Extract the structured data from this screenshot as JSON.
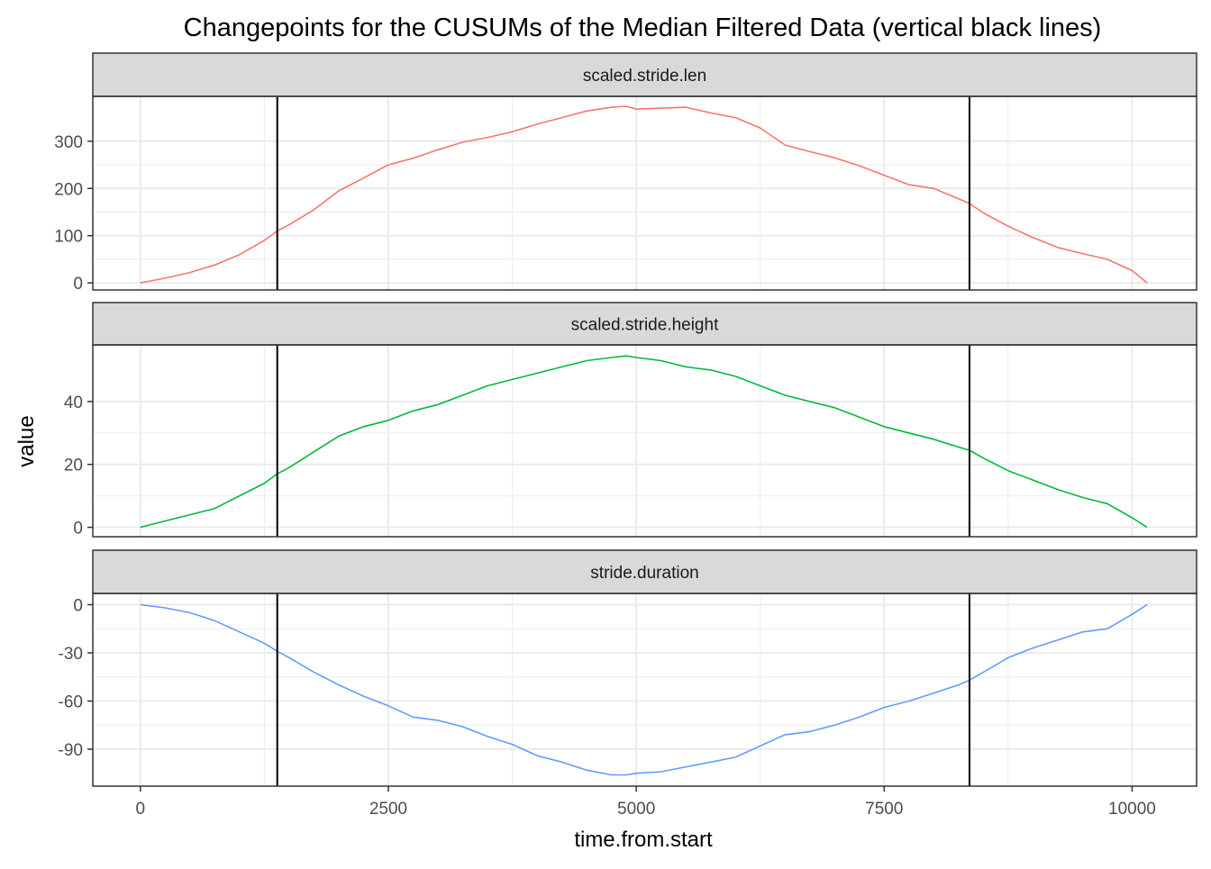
{
  "chart_data": {
    "type": "line",
    "title": "Changepoints for the CUSUMs of the Median Filtered Data (vertical black lines)",
    "xlabel": "time.from.start",
    "ylabel": "value",
    "xlim": [
      -480,
      10650
    ],
    "x_ticks": [
      0,
      2500,
      5000,
      7500,
      10000
    ],
    "x_tick_labels": [
      "0",
      "2500",
      "5000",
      "7500",
      "10000"
    ],
    "changepoints": [
      1380,
      8360
    ],
    "grid": true,
    "legend": "none",
    "colors": {
      "scaled.stride.len": "#F8766D",
      "scaled.stride.height": "#00BA38",
      "stride.duration": "#619CFF",
      "changepoint": "#000000",
      "strip_fill": "#D9D9D9",
      "grid": "#EBEBEB"
    },
    "panels": [
      {
        "name": "scaled.stride.len",
        "ylim": [
          -15,
          395
        ],
        "y_ticks": [
          0,
          100,
          200,
          300
        ],
        "y_tick_labels": [
          "0",
          "100",
          "200",
          "300"
        ],
        "x": [
          0,
          250,
          500,
          750,
          1000,
          1250,
          1380,
          1500,
          1750,
          2000,
          2250,
          2500,
          2750,
          3000,
          3250,
          3500,
          3750,
          4000,
          4250,
          4500,
          4750,
          4900,
          5000,
          5250,
          5500,
          5750,
          6000,
          6250,
          6500,
          6750,
          7000,
          7250,
          7500,
          7750,
          8000,
          8250,
          8360,
          8500,
          8750,
          9000,
          9250,
          9500,
          9750,
          10000,
          10150
        ],
        "values": [
          0,
          10,
          22,
          38,
          60,
          90,
          110,
          123,
          155,
          195,
          222,
          250,
          264,
          282,
          298,
          308,
          320,
          336,
          350,
          364,
          372,
          374,
          368,
          370,
          372,
          360,
          350,
          328,
          292,
          278,
          265,
          248,
          228,
          208,
          200,
          178,
          168,
          148,
          120,
          96,
          75,
          62,
          50,
          26,
          0
        ]
      },
      {
        "name": "scaled.stride.height",
        "ylim": [
          -3,
          58
        ],
        "y_ticks": [
          0,
          20,
          40
        ],
        "y_tick_labels": [
          "0",
          "20",
          "40"
        ],
        "x": [
          0,
          250,
          500,
          750,
          1000,
          1250,
          1380,
          1500,
          1750,
          2000,
          2250,
          2500,
          2750,
          3000,
          3250,
          3500,
          3750,
          4000,
          4250,
          4500,
          4750,
          4900,
          5000,
          5250,
          5500,
          5750,
          6000,
          6250,
          6500,
          6750,
          7000,
          7250,
          7500,
          7750,
          8000,
          8250,
          8360,
          8500,
          8750,
          9000,
          9250,
          9500,
          9750,
          10000,
          10150
        ],
        "values": [
          0,
          2,
          4,
          6,
          10,
          14,
          17,
          19,
          24,
          29,
          32,
          34,
          37,
          39,
          42,
          45,
          47,
          49,
          51,
          53,
          54,
          54.5,
          54,
          53,
          51,
          50,
          48,
          45,
          42,
          40,
          38,
          35,
          32,
          30,
          28,
          25.5,
          24.5,
          22,
          18,
          15,
          12,
          9.5,
          7.5,
          3,
          0
        ]
      },
      {
        "name": "stride.duration",
        "ylim": [
          -113,
          7
        ],
        "y_ticks": [
          0,
          -30,
          -60,
          -90
        ],
        "y_tick_labels": [
          "0",
          "-30",
          "-60",
          "-90"
        ],
        "x": [
          0,
          250,
          500,
          750,
          1000,
          1250,
          1380,
          1500,
          1750,
          2000,
          2250,
          2500,
          2750,
          3000,
          3250,
          3500,
          3750,
          4000,
          4250,
          4500,
          4750,
          4900,
          5000,
          5250,
          5500,
          5750,
          6000,
          6250,
          6500,
          6750,
          7000,
          7250,
          7500,
          7750,
          8000,
          8250,
          8360,
          8500,
          8750,
          9000,
          9250,
          9500,
          9750,
          10000,
          10150
        ],
        "values": [
          0,
          -2,
          -5,
          -10,
          -17,
          -24,
          -29,
          -33,
          -42,
          -50,
          -57,
          -63,
          -70,
          -72,
          -76,
          -82,
          -87,
          -94,
          -98,
          -103,
          -106,
          -106,
          -105,
          -104,
          -101,
          -98,
          -95,
          -88,
          -81,
          -79,
          -75,
          -70,
          -64,
          -60,
          -55,
          -50,
          -47,
          -42,
          -33,
          -27,
          -22,
          -17,
          -15,
          -6,
          0
        ]
      }
    ]
  }
}
